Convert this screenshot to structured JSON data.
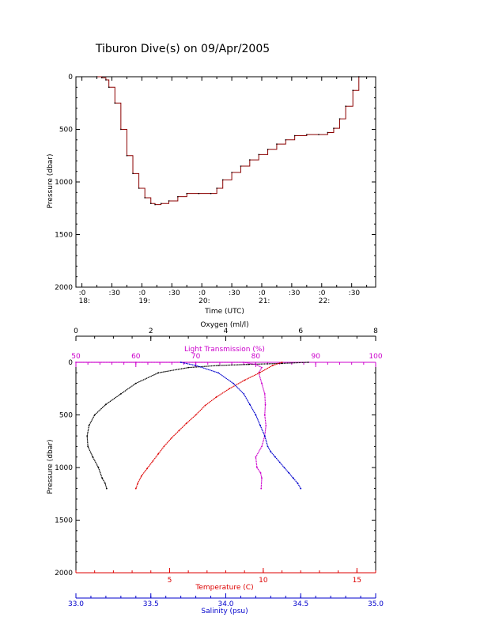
{
  "title": "Tiburon Dive(s) on 09/Apr/2005",
  "colors": {
    "axis": "#000000",
    "oxygen": "#000000",
    "light_transmission": "#cc00cc",
    "temperature": "#dd0000",
    "salinity": "#0000cc",
    "dive_line": "#8b0000",
    "dive_marker": "#000000"
  },
  "chart_data": [
    {
      "type": "line",
      "ylabel": "Pressure (dbar)",
      "xlabel": "Time (UTC)",
      "y_reversed": true,
      "ylim": [
        0,
        2000
      ],
      "y_ticks": [
        0,
        500,
        1000,
        1500,
        2000
      ],
      "xlim": [
        17.9,
        22.9
      ],
      "x_ticks": [
        {
          "t": 18.0,
          "top": ":0",
          "bottom": "18:"
        },
        {
          "t": 18.5,
          "top": ":30",
          "bottom": ""
        },
        {
          "t": 19.0,
          "top": ":0",
          "bottom": "19:"
        },
        {
          "t": 19.5,
          "top": ":30",
          "bottom": ""
        },
        {
          "t": 20.0,
          "top": ":0",
          "bottom": "20:"
        },
        {
          "t": 20.5,
          "top": ":30",
          "bottom": ""
        },
        {
          "t": 21.0,
          "top": ":0",
          "bottom": "21:"
        },
        {
          "t": 21.5,
          "top": ":30",
          "bottom": ""
        },
        {
          "t": 22.0,
          "top": ":0",
          "bottom": "22:"
        },
        {
          "t": 22.5,
          "top": ":30",
          "bottom": ""
        }
      ],
      "series": [
        {
          "x": [
            18.25,
            18.33,
            18.4,
            18.45,
            18.55,
            18.65,
            18.75,
            18.85,
            18.95,
            19.05,
            19.15,
            19.22,
            19.32,
            19.45,
            19.6,
            19.75,
            19.95,
            20.15,
            20.25,
            20.35,
            20.5,
            20.65,
            20.8,
            20.95,
            21.1,
            21.25,
            21.4,
            21.55,
            21.75,
            21.95,
            22.1,
            22.2,
            22.3,
            22.4,
            22.52,
            22.62
          ],
          "y": [
            0,
            10,
            30,
            100,
            250,
            500,
            750,
            920,
            1060,
            1150,
            1205,
            1215,
            1205,
            1180,
            1140,
            1110,
            1110,
            1110,
            1060,
            980,
            910,
            850,
            790,
            740,
            690,
            640,
            600,
            560,
            550,
            550,
            530,
            490,
            400,
            280,
            130,
            0
          ]
        }
      ]
    },
    {
      "type": "line",
      "ylabel": "Pressure (dbar)",
      "y_reversed": true,
      "ylim": [
        0,
        2000
      ],
      "y_ticks": [
        0,
        500,
        1000,
        1500,
        2000
      ],
      "axes": {
        "oxygen": {
          "label": "Oxygen (ml/l)",
          "range": [
            0,
            8
          ],
          "ticks": [
            "0",
            "2",
            "4",
            "6",
            "8"
          ]
        },
        "light_transmission": {
          "label": "Light Transmission (%)",
          "range": [
            50,
            100
          ],
          "ticks": [
            "50",
            "60",
            "70",
            "80",
            "90",
            "100"
          ]
        },
        "temperature": {
          "label": "Temperature (C)",
          "range": [
            0,
            16
          ],
          "ticks": [
            "5",
            "10",
            "15"
          ]
        },
        "salinity": {
          "label": "Salinity (psu)",
          "range": [
            33.0,
            35.0
          ],
          "ticks": [
            "33.0",
            "33.5",
            "34.0",
            "34.5",
            "35.0"
          ]
        }
      },
      "series": [
        {
          "key": "oxygen",
          "x": [
            6.2,
            5.5,
            4.6,
            3.8,
            3.0,
            2.2,
            1.6,
            1.2,
            0.8,
            0.5,
            0.35,
            0.3,
            0.32,
            0.45,
            0.6,
            0.7,
            0.78,
            0.82
          ],
          "y": [
            0,
            10,
            20,
            30,
            50,
            100,
            200,
            300,
            400,
            500,
            600,
            700,
            800,
            900,
            1000,
            1100,
            1150,
            1200
          ]
        },
        {
          "key": "light_transmission",
          "x": [
            50,
            60,
            70,
            78,
            80,
            81,
            80.5,
            81,
            81.5,
            81.6,
            81.5,
            81.7,
            81.5,
            81,
            80,
            80.2,
            80.8,
            81,
            80.9
          ],
          "y": [
            0,
            0,
            0,
            0,
            20,
            50,
            100,
            200,
            300,
            400,
            500,
            600,
            700,
            800,
            900,
            1000,
            1050,
            1100,
            1200
          ]
        },
        {
          "key": "temperature",
          "x": [
            11.0,
            10.5,
            9.8,
            9.0,
            8.2,
            7.5,
            6.9,
            6.4,
            5.9,
            5.5,
            5.1,
            4.7,
            4.4,
            4.1,
            3.8,
            3.5,
            3.3,
            3.2
          ],
          "y": [
            0,
            30,
            100,
            170,
            250,
            330,
            410,
            500,
            580,
            650,
            720,
            800,
            870,
            940,
            1010,
            1080,
            1150,
            1200
          ]
        },
        {
          "key": "salinity",
          "x": [
            33.7,
            33.8,
            33.95,
            34.05,
            34.12,
            34.16,
            34.2,
            34.23,
            34.26,
            34.28,
            34.3,
            34.33,
            34.36,
            34.39,
            34.42,
            34.45,
            34.48,
            34.5
          ],
          "y": [
            0,
            30,
            100,
            200,
            300,
            400,
            500,
            600,
            700,
            800,
            850,
            900,
            950,
            1000,
            1050,
            1100,
            1150,
            1200
          ]
        }
      ]
    }
  ]
}
